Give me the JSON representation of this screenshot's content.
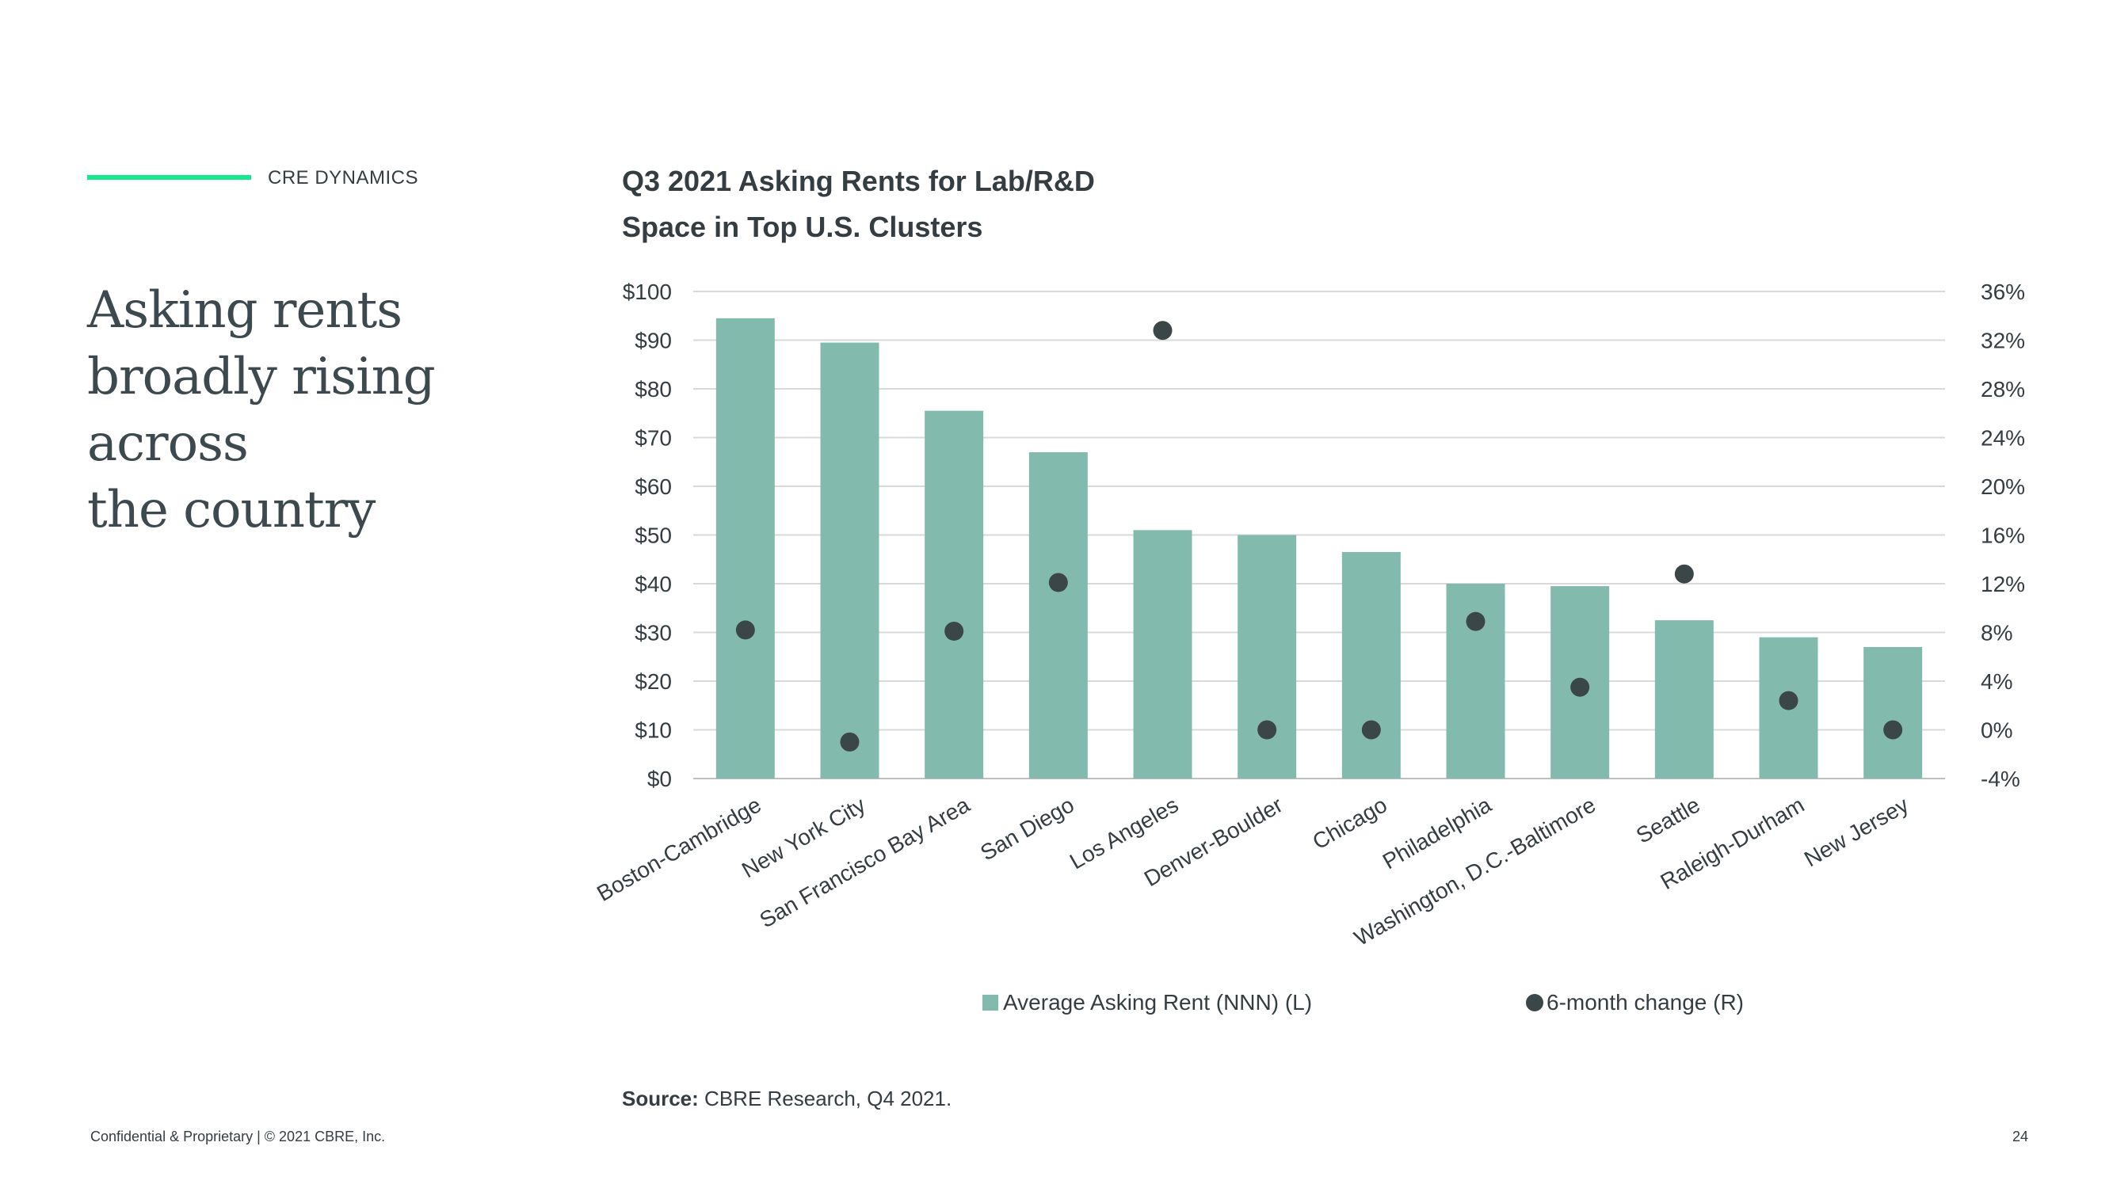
{
  "header": {
    "section_label": "CRE DYNAMICS"
  },
  "headline": {
    "lines": [
      "Asking rents",
      "broadly rising across",
      "the country"
    ]
  },
  "chart_title": {
    "line1": "Q3 2021 Asking Rents for Lab/R&D",
    "line2": "Space in Top U.S. Clusters"
  },
  "colors": {
    "accent": "#17e88f",
    "bar": "#82bbad",
    "dot": "#3b4649",
    "text": "#333d42",
    "grid": "#d9d9d9"
  },
  "chart_data": {
    "type": "bar",
    "title": "Q3 2021 Asking Rents for Lab/R&D Space in Top U.S. Clusters",
    "categories": [
      "Boston-Cambridge",
      "New York City",
      "San Francisco Bay Area",
      "San Diego",
      "Los Angeles",
      "Denver-Boulder",
      "Chicago",
      "Philadelphia",
      "Washington, D.C.-Baltimore",
      "Seattle",
      "Raleigh-Durham",
      "New Jersey"
    ],
    "series": [
      {
        "name": "Average Asking Rent (NNN) (L)",
        "type": "bar",
        "axis": "left",
        "values": [
          94.5,
          89.5,
          75.5,
          67,
          51,
          50,
          46.5,
          40,
          39.5,
          32.5,
          29,
          27
        ]
      },
      {
        "name": "6-month change (R)",
        "type": "scatter",
        "axis": "right",
        "values": [
          8.2,
          -1.0,
          8.1,
          12.1,
          32.8,
          0.0,
          0.0,
          8.9,
          3.5,
          12.8,
          2.4,
          0.0
        ]
      }
    ],
    "left_axis": {
      "min": 0,
      "max": 100,
      "step": 10,
      "tick_labels": [
        "$0",
        "$10",
        "$20",
        "$30",
        "$40",
        "$50",
        "$60",
        "$70",
        "$80",
        "$90",
        "$100"
      ]
    },
    "right_axis": {
      "min": -4,
      "max": 36,
      "step": 4,
      "tick_labels": [
        "-4%",
        "0%",
        "4%",
        "8%",
        "12%",
        "16%",
        "20%",
        "24%",
        "28%",
        "32%",
        "36%"
      ]
    },
    "grid": true,
    "legend_position": "bottom"
  },
  "legend": {
    "bar_label": "Average Asking Rent (NNN) (L)",
    "dot_label": "6-month change (R)"
  },
  "source": {
    "label": "Source:",
    "text": "CBRE Research, Q4 2021."
  },
  "footer": {
    "text": "Confidential & Proprietary | © 2021 CBRE, Inc.",
    "page_number": "24"
  }
}
